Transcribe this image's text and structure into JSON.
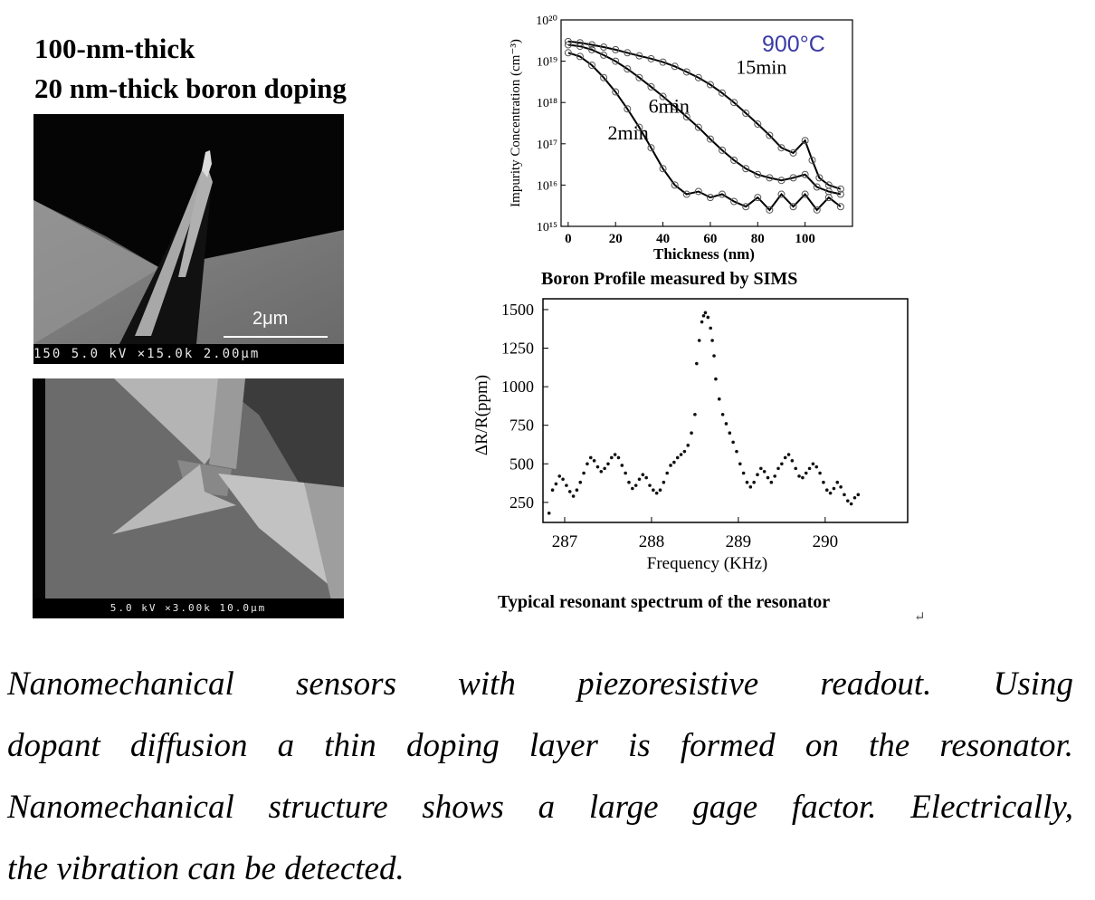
{
  "heading": {
    "line1": "100-nm-thick",
    "line2": "20 nm-thick boron doping"
  },
  "sem_top": {
    "scale_label": "2μm",
    "info_bar": "150 5.0 kV ×15.0k 2.00μm"
  },
  "sem_bottom": {
    "info_bar": "5.0 kV ×3.00k 10.0μm"
  },
  "chart_data": [
    {
      "type": "line",
      "title": "Boron Profile measured by SIMS",
      "xlabel": "Thickness (nm)",
      "ylabel": "Impurity Concentration (cm⁻³)",
      "yscale": "log",
      "xlim": [
        -3,
        120
      ],
      "ylim": [
        1000000000000000.0,
        1e+20
      ],
      "x_ticks": [
        "0",
        "20",
        "40",
        "60",
        "80",
        "100"
      ],
      "y_ticks": [
        "10¹⁵",
        "10¹⁶",
        "10¹⁷",
        "10¹⁸",
        "10¹⁹",
        "10²⁰"
      ],
      "annotation": "900°C",
      "series": [
        {
          "name": "2min",
          "x": [
            0,
            5,
            10,
            15,
            20,
            25,
            30,
            35,
            40,
            45,
            50,
            55,
            60,
            65,
            70,
            75,
            80,
            85,
            90,
            95,
            100,
            105,
            110,
            115
          ],
          "y": [
            1.6e+19,
            1.3e+19,
            8e+18,
            4e+18,
            1.8e+18,
            7e+17,
            2.5e+17,
            8e+16,
            2.5e+16,
            1e+16,
            6000000000000000.0,
            7000000000000000.0,
            5000000000000000.0,
            6000000000000000.0,
            4000000000000000.0,
            3000000000000000.0,
            5000000000000000.0,
            2500000000000000.0,
            6000000000000000.0,
            3000000000000000.0,
            6000000000000000.0,
            2500000000000000.0,
            5000000000000000.0,
            3000000000000000.0
          ]
        },
        {
          "name": "6min",
          "x": [
            0,
            5,
            10,
            15,
            20,
            25,
            30,
            35,
            40,
            45,
            50,
            55,
            60,
            65,
            70,
            75,
            80,
            85,
            90,
            95,
            100,
            105,
            110,
            115
          ],
          "y": [
            2.5e+19,
            2.3e+19,
            1.9e+19,
            1.4e+19,
            1e+19,
            6.5e+18,
            4e+18,
            2.4e+18,
            1.4e+18,
            8e+17,
            4.5e+17,
            2.5e+17,
            1.3e+17,
            7e+16,
            4e+16,
            2.5e+16,
            1.8e+16,
            1.5e+16,
            1.3e+16,
            1.5e+16,
            1.8e+16,
            9000000000000000.0,
            7000000000000000.0,
            6000000000000000.0
          ]
        },
        {
          "name": "15min",
          "x": [
            0,
            5,
            10,
            15,
            20,
            25,
            30,
            35,
            40,
            45,
            50,
            55,
            60,
            65,
            70,
            75,
            80,
            85,
            90,
            95,
            100,
            103,
            106,
            110,
            115
          ],
          "y": [
            3e+19,
            2.8e+19,
            2.5e+19,
            2.2e+19,
            1.9e+19,
            1.6e+19,
            1.35e+19,
            1.15e+19,
            9.5e+18,
            7.5e+18,
            5.5e+18,
            4e+18,
            2.7e+18,
            1.7e+18,
            1e+18,
            5.5e+17,
            3e+17,
            1.6e+17,
            8e+16,
            6e+16,
            1.2e+17,
            4e+16,
            1.5e+16,
            1e+16,
            8000000000000000.0
          ]
        }
      ]
    },
    {
      "type": "scatter",
      "title": "Typical resonant spectrum of the resonator",
      "xlabel": "Frequency (KHz)",
      "ylabel": "ΔR/R(ppm)",
      "xlim": [
        286.75,
        290.95
      ],
      "ylim": [
        120,
        1570
      ],
      "x_ticks": [
        "287",
        "288",
        "289",
        "290"
      ],
      "y_ticks": [
        "250",
        "500",
        "750",
        "1000",
        "1250",
        "1500"
      ],
      "series": [
        {
          "name": "",
          "points": [
            [
              286.82,
              180
            ],
            [
              286.86,
              330
            ],
            [
              286.9,
              370
            ],
            [
              286.94,
              420
            ],
            [
              286.98,
              400
            ],
            [
              287.02,
              360
            ],
            [
              287.06,
              320
            ],
            [
              287.1,
              290
            ],
            [
              287.14,
              330
            ],
            [
              287.18,
              380
            ],
            [
              287.22,
              440
            ],
            [
              287.26,
              500
            ],
            [
              287.3,
              540
            ],
            [
              287.34,
              520
            ],
            [
              287.38,
              480
            ],
            [
              287.42,
              450
            ],
            [
              287.46,
              470
            ],
            [
              287.5,
              500
            ],
            [
              287.54,
              540
            ],
            [
              287.58,
              560
            ],
            [
              287.62,
              540
            ],
            [
              287.66,
              490
            ],
            [
              287.7,
              440
            ],
            [
              287.74,
              380
            ],
            [
              287.78,
              340
            ],
            [
              287.82,
              360
            ],
            [
              287.86,
              400
            ],
            [
              287.9,
              430
            ],
            [
              287.94,
              410
            ],
            [
              287.98,
              360
            ],
            [
              288.02,
              330
            ],
            [
              288.06,
              310
            ],
            [
              288.1,
              330
            ],
            [
              288.14,
              380
            ],
            [
              288.18,
              440
            ],
            [
              288.22,
              490
            ],
            [
              288.26,
              510
            ],
            [
              288.3,
              540
            ],
            [
              288.34,
              560
            ],
            [
              288.38,
              580
            ],
            [
              288.42,
              620
            ],
            [
              288.46,
              700
            ],
            [
              288.5,
              820
            ],
            [
              288.52,
              1150
            ],
            [
              288.55,
              1300
            ],
            [
              288.58,
              1420
            ],
            [
              288.6,
              1460
            ],
            [
              288.62,
              1480
            ],
            [
              288.65,
              1450
            ],
            [
              288.68,
              1380
            ],
            [
              288.7,
              1300
            ],
            [
              288.72,
              1200
            ],
            [
              288.74,
              1050
            ],
            [
              288.78,
              920
            ],
            [
              288.82,
              820
            ],
            [
              288.86,
              760
            ],
            [
              288.9,
              700
            ],
            [
              288.94,
              640
            ],
            [
              288.98,
              580
            ],
            [
              289.02,
              500
            ],
            [
              289.06,
              440
            ],
            [
              289.1,
              380
            ],
            [
              289.14,
              350
            ],
            [
              289.18,
              380
            ],
            [
              289.22,
              430
            ],
            [
              289.26,
              470
            ],
            [
              289.3,
              450
            ],
            [
              289.34,
              410
            ],
            [
              289.38,
              380
            ],
            [
              289.42,
              420
            ],
            [
              289.46,
              470
            ],
            [
              289.5,
              500
            ],
            [
              289.54,
              540
            ],
            [
              289.58,
              560
            ],
            [
              289.62,
              520
            ],
            [
              289.66,
              470
            ],
            [
              289.7,
              420
            ],
            [
              289.74,
              410
            ],
            [
              289.78,
              440
            ],
            [
              289.82,
              470
            ],
            [
              289.86,
              500
            ],
            [
              289.9,
              480
            ],
            [
              289.94,
              440
            ],
            [
              289.98,
              380
            ],
            [
              290.02,
              330
            ],
            [
              290.06,
              310
            ],
            [
              290.1,
              340
            ],
            [
              290.14,
              380
            ],
            [
              290.18,
              350
            ],
            [
              290.22,
              300
            ],
            [
              290.26,
              260
            ],
            [
              290.3,
              240
            ],
            [
              290.34,
              280
            ],
            [
              290.38,
              300
            ]
          ]
        }
      ]
    }
  ],
  "caption_sims": "Boron Profile measured by SIMS",
  "caption_resonator": "Typical resonant spectrum of the resonator",
  "return_mark": "↵",
  "paragraph": {
    "line1": "Nanomechanical sensors with piezoresistive readout. Using",
    "line2": "dopant diffusion a thin doping layer is formed on the resonator.",
    "line3": "Nanomechanical structure shows a large gage factor. Electrically,",
    "line4": "the vibration can be detected."
  }
}
